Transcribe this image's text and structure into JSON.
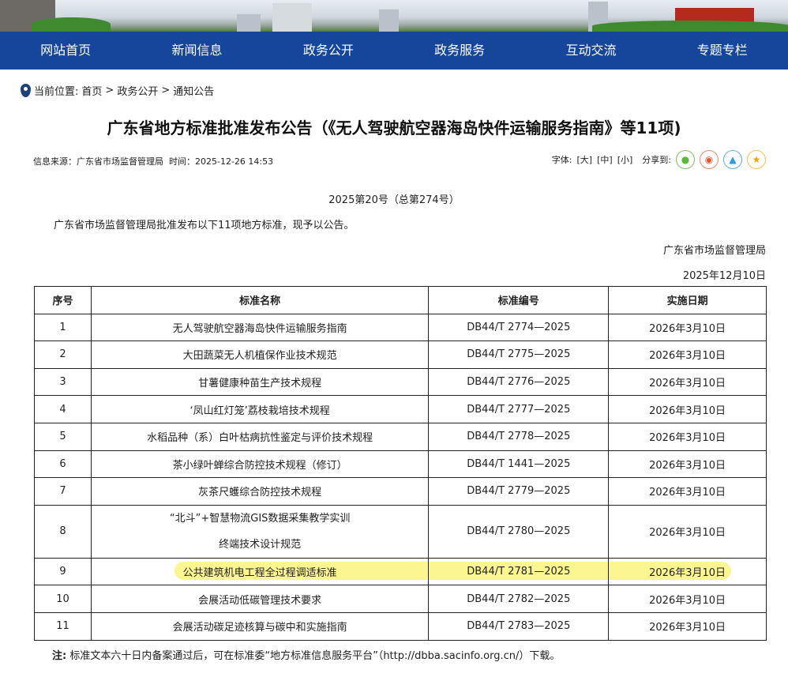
{
  "nav": [
    "网站首页",
    "新闻信息",
    "政务公开",
    "政务服务",
    "互动交流",
    "专题专栏"
  ],
  "breadcrumb": {
    "label": "当前位置:",
    "items": [
      "首页",
      "政务公开",
      "通知公告"
    ],
    "sep": ">"
  },
  "title": "广东省地方标准批准发布公告（《无人驾驶航空器海岛快件运输服务指南》等11项)",
  "meta": {
    "source": "信息来源：广东省市场监督管理局",
    "time": "时间：2025-12-26 14:53"
  },
  "tools": {
    "font_label": "字体:",
    "large": "[大]",
    "medium": "[中]",
    "small": "[小]",
    "share_label": "分享到:",
    "share_icons": [
      "wechat-icon",
      "weibo-icon",
      "qq-icon",
      "favorite-icon"
    ]
  },
  "doc_no": "2025第20号（总第274号）",
  "intro": "广东省市场监督管理局批准发布以下11项地方标准，现予以公告。",
  "issuer": "广东省市场监督管理局",
  "date": "2025年12月10日",
  "table": {
    "headers": [
      "序号",
      "标准名称",
      "标准编号",
      "实施日期"
    ],
    "rows": [
      [
        "1",
        "无人驾驶航空器海岛快件运输服务指南",
        "DB44/T 2774—2025",
        "2026年3月10日"
      ],
      [
        "2",
        "大田蔬菜无人机植保作业技术规范",
        "DB44/T 2775—2025",
        "2026年3月10日"
      ],
      [
        "3",
        "甘薯健康种苗生产技术规程",
        "DB44/T 2776—2025",
        "2026年3月10日"
      ],
      [
        "4",
        "‘凤山红灯笼’荔枝栽培技术规程",
        "DB44/T 2777—2025",
        "2026年3月10日"
      ],
      [
        "5",
        "水稻品种（系）白叶枯病抗性鉴定与评价技术规程",
        "DB44/T 2778—2025",
        "2026年3月10日"
      ],
      [
        "6",
        "茶小绿叶蝉综合防控技术规程（修订）",
        "DB44/T 1441—2025",
        "2026年3月10日"
      ],
      [
        "7",
        "灰茶尺蠖综合防控技术规程",
        "DB44/T 2779—2025",
        "2026年3月10日"
      ],
      [
        "8",
        "“北斗”+智慧物流GIS数据采集教学实训|终端技术设计规范",
        "DB44/T 2780—2025",
        "2026年3月10日"
      ],
      [
        "9",
        "公共建筑机电工程全过程调适标准",
        "DB44/T 2781—2025",
        "2026年3月10日"
      ],
      [
        "10",
        "会展活动低碳管理技术要求",
        "DB44/T 2782—2025",
        "2026年3月10日"
      ],
      [
        "11",
        "会展活动碳足迹核算与碳中和实施指南",
        "DB44/T 2783—2025",
        "2026年3月10日"
      ]
    ]
  },
  "note": {
    "label": "注:",
    "text": "标准文本六十日内备案通过后，可在标准委“地方标准信息服务平台”（http://dbba.sacinfo.org.cn/）下载。"
  },
  "colors": {
    "nav": "#15469b",
    "highlight": "#faf26e"
  }
}
